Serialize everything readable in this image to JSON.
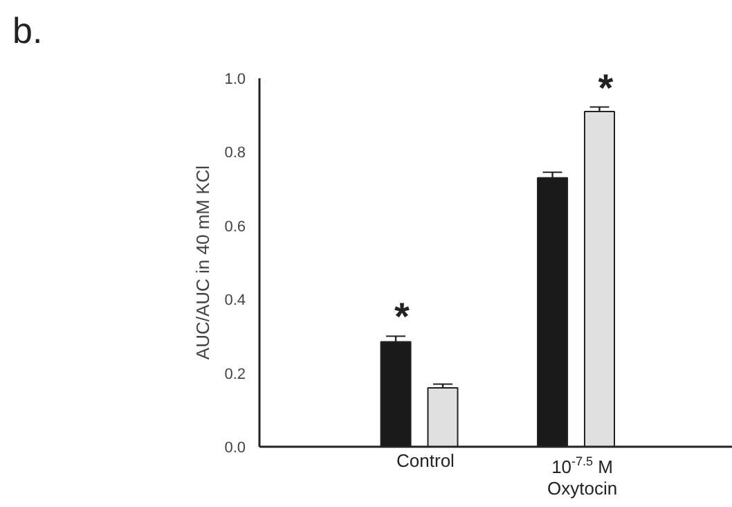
{
  "chart_data": {
    "type": "bar",
    "ylabel": "AUC/AUC in 40 mM KCl",
    "categories": [
      "Control",
      "10$^{-7.5}$ M Oxytocin"
    ],
    "series": [
      {
        "color": "#1a1a1a",
        "values": [
          0.285,
          0.73
        ],
        "errors": [
          0.015,
          0.015
        ]
      },
      {
        "color": "#e0e0e0",
        "values": [
          0.16,
          0.91
        ],
        "errors": [
          0.01,
          0.012
        ]
      }
    ],
    "ylim": [
      0,
      1.0
    ],
    "yticks": [
      {
        "value": 0,
        "label": "0.0"
      },
      {
        "value": 0.2,
        "label": "0.2"
      },
      {
        "value": 0.4,
        "label": "0.4"
      },
      {
        "value": 0.6,
        "label": "0.6"
      },
      {
        "value": 0.8,
        "label": "0.8"
      },
      {
        "value": 1.0,
        "label": "1.0"
      }
    ],
    "grid": false,
    "annotations": [
      "b.",
      "*",
      "*"
    ]
  }
}
